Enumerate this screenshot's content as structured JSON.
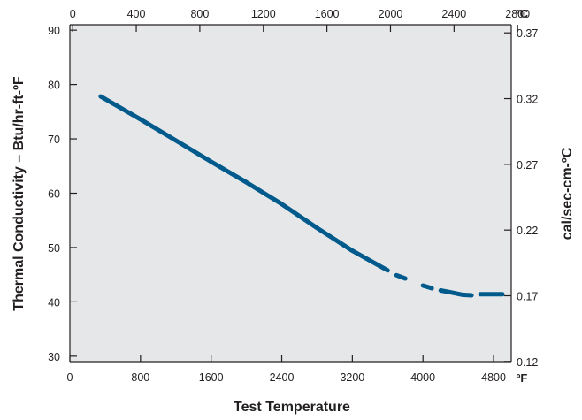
{
  "chart_data": {
    "type": "line",
    "title": "",
    "xlabel": "Test Temperature",
    "ylabel": "Thermal Conductivity – Btu/hr-ft-ºF",
    "y2label": "cal/sec-cm-ºC",
    "x_unit": "ºF",
    "x2_unit": "ºC",
    "xlim": [
      0,
      5000
    ],
    "ylim": [
      29,
      91
    ],
    "x_ticks": [
      0,
      800,
      1600,
      2400,
      3200,
      4000,
      4800
    ],
    "x_tick_labels": [
      "0",
      "800",
      "1600",
      "2400",
      "3200",
      "4000",
      "4800"
    ],
    "x2_ticks": [
      0,
      400,
      800,
      1200,
      1600,
      2000,
      2400,
      2800
    ],
    "x2_tick_labels": [
      "0",
      "400",
      "800",
      "1200",
      "1600",
      "2000",
      "2400",
      "2800"
    ],
    "y_ticks": [
      30,
      40,
      50,
      60,
      70,
      80,
      90
    ],
    "y_tick_labels": [
      "30",
      "40",
      "50",
      "60",
      "70",
      "80",
      "90"
    ],
    "y2_ticks": [
      0.12,
      0.17,
      0.22,
      0.27,
      0.32,
      0.37
    ],
    "y2_tick_labels": [
      "0.12",
      "0.17",
      "0.22",
      "0.27",
      "0.32",
      "0.37"
    ],
    "grid": false,
    "colors": {
      "plot_background": "#e6e7e8",
      "series": "#005a8c",
      "axis": "#231f20"
    },
    "series": [
      {
        "name": "",
        "x": [
          350,
          800,
          1200,
          1600,
          2000,
          2400,
          2800,
          3000,
          3200,
          3400,
          3600,
          3700,
          3800,
          4000,
          4100,
          4200,
          4300,
          4450,
          4550,
          4650,
          4900
        ],
        "y": [
          77.8,
          73.6,
          69.7,
          65.8,
          62.0,
          58.0,
          53.6,
          51.5,
          49.4,
          47.6,
          45.8,
          44.9,
          44.3,
          43.0,
          42.5,
          42.1,
          41.8,
          41.3,
          41.2,
          41.4,
          41.4
        ],
        "segments": [
          [
            0,
            10
          ],
          [
            11,
            12
          ],
          [
            13,
            14
          ],
          [
            15,
            18
          ],
          [
            19,
            20
          ]
        ]
      }
    ]
  }
}
